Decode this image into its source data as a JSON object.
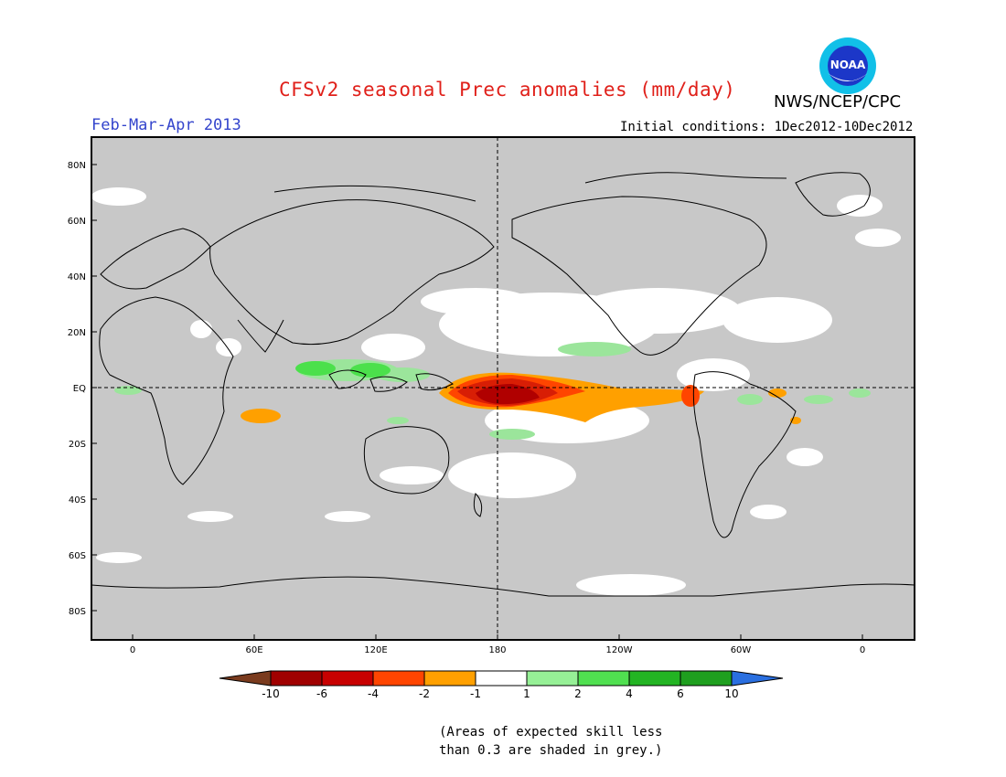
{
  "title": "CFSv2 seasonal Prec anomalies (mm/day)",
  "period": "Feb-Mar-Apr 2013",
  "initial_conditions": "Initial conditions: 1Dec2012-10Dec2012",
  "organization": "NWS/NCEP/CPC",
  "logo_text": "NOAA",
  "map": {
    "lat_labels": [
      "80N",
      "60N",
      "40N",
      "20N",
      "EQ",
      "20S",
      "40S",
      "60S",
      "80S"
    ],
    "lon_labels": [
      "0",
      "60E",
      "120E",
      "180",
      "120W",
      "60W",
      "0"
    ],
    "grey_color": "#c8c8c8",
    "land_outline_color": "#000000"
  },
  "anomaly_features": [
    {
      "label": "central equatorial Pacific core",
      "category": "-10 to -6",
      "color": "#b00000"
    },
    {
      "label": "central equatorial Pacific",
      "category": "-6 to -4",
      "color": "#d81e05"
    },
    {
      "label": "equatorial Pacific tongue",
      "category": "-4 to -2",
      "color": "#ff4500"
    },
    {
      "label": "equatorial Pacific band",
      "category": "-2 to -1",
      "color": "#ffa000"
    },
    {
      "label": "Maritime Continent",
      "category": "1 to 2",
      "color": "#9be59b"
    },
    {
      "label": "Maritime Continent core",
      "category": "2 to 4",
      "color": "#4be04b"
    }
  ],
  "colorbar": {
    "bins": [
      {
        "color": "#7a3b1e",
        "label": "-10"
      },
      {
        "color": "#a00000",
        "label": "-6"
      },
      {
        "color": "#c80000",
        "label": "-4"
      },
      {
        "color": "#ff4500",
        "label": "-2"
      },
      {
        "color": "#ffa000",
        "label": "-1"
      },
      {
        "color": "#ffffff",
        "label": "1"
      },
      {
        "color": "#96f096",
        "label": "2"
      },
      {
        "color": "#50e050",
        "label": "4"
      },
      {
        "color": "#23b423",
        "label": "6"
      },
      {
        "color": "#1f9f1f",
        "label": "10"
      },
      {
        "color": "#2a6fe0",
        "label": ""
      }
    ]
  },
  "note_line1": "(Areas of expected skill less",
  "note_line2": "than 0.3 are shaded in grey.)"
}
